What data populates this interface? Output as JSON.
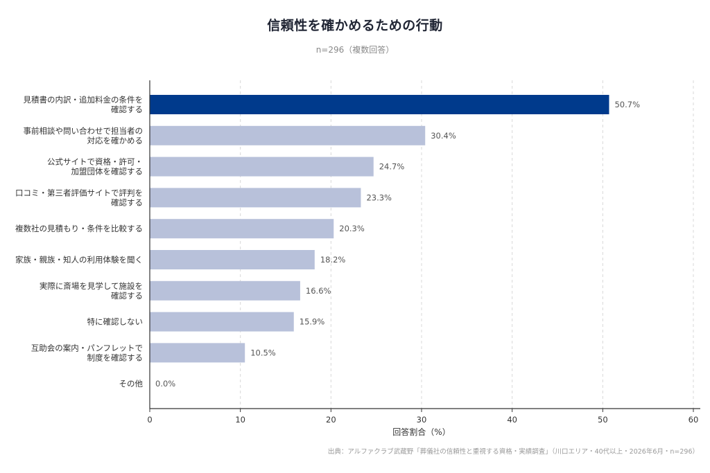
{
  "chart_data": {
    "type": "bar",
    "orientation": "horizontal",
    "title": "信頼性を確かめるための行動",
    "subtitle": "n=296（複数回答）",
    "xlabel": "回答割合（%）",
    "ylabel": "",
    "xlim": [
      0,
      60
    ],
    "xticks": [
      0,
      10,
      20,
      30,
      40,
      50,
      60
    ],
    "grid": "vertical-dashed",
    "value_suffix": "%",
    "categories": [
      [
        "見積書の内訳・追加料金の条件を",
        "確認する"
      ],
      [
        "事前相談や問い合わせで担当者の",
        "対応を確かめる"
      ],
      [
        "公式サイトで資格・許可・",
        "加盟団体を確認する"
      ],
      [
        "口コミ・第三者評価サイトで評判を",
        "確認する"
      ],
      [
        "複数社の見積もり・条件を比較する"
      ],
      [
        "家族・親族・知人の利用体験を聞く"
      ],
      [
        "実際に斎場を見学して施設を",
        "確認する"
      ],
      [
        "特に確認しない"
      ],
      [
        "互助会の案内・パンフレットで",
        "制度を確認する"
      ],
      [
        "その他"
      ]
    ],
    "values": [
      50.7,
      30.4,
      24.7,
      23.3,
      20.3,
      18.2,
      16.6,
      15.9,
      10.5,
      0.0
    ],
    "highlight_index": 0,
    "colors": {
      "highlight": "#003a8c",
      "default": "#b8c1da",
      "grid": "#d8d8d8",
      "axis": "#333333"
    }
  },
  "source_note": "出典：アルファクラブ武蔵野「葬儀社の信頼性と重視する資格・実績調査」（川口エリア・40代以上・2026年6月・n=296）"
}
